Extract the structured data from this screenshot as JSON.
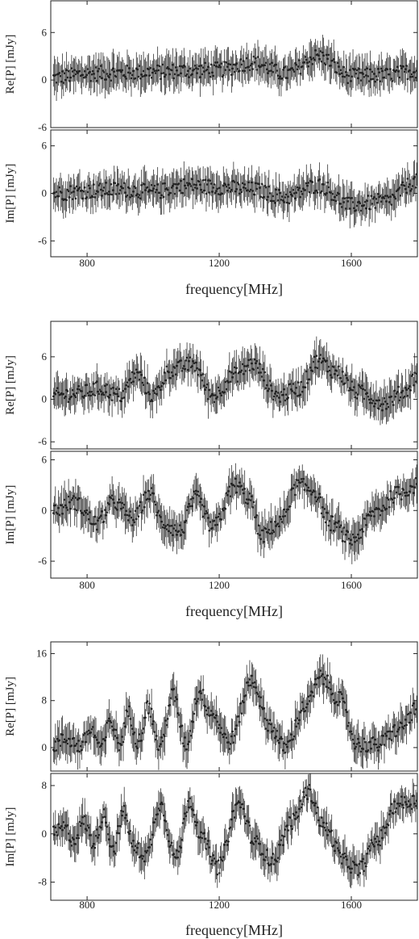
{
  "chart_data": [
    {
      "type": "line",
      "figure": 1,
      "xlabel": "frequency[MHz]",
      "xlim": [
        690,
        1800
      ],
      "xticks": [
        "800",
        "1200",
        "1600"
      ],
      "panels": [
        {
          "ylabel": "Re[P] [mJy]",
          "ylim": [
            -6,
            10
          ],
          "yticks": [
            "-6",
            "0",
            "6"
          ],
          "series": [
            {
              "x": [
                700,
                800,
                900,
                1000,
                1100,
                1200,
                1300,
                1400,
                1500,
                1600,
                1700,
                1800
              ],
              "y": [
                0.3,
                0.8,
                0.9,
                1.0,
                1.2,
                1.3,
                2.2,
                0.8,
                3.0,
                0.5,
                0.6,
                1.2
              ]
            }
          ]
        },
        {
          "ylabel": "Im[P] [mJy]",
          "ylim": [
            -8,
            8
          ],
          "yticks": [
            "-6",
            "0",
            "6"
          ],
          "series": [
            {
              "x": [
                700,
                800,
                900,
                1000,
                1100,
                1200,
                1300,
                1400,
                1500,
                1600,
                1700,
                1800
              ],
              "y": [
                0.0,
                0.3,
                0.5,
                0.2,
                1.0,
                0.8,
                0.5,
                -0.5,
                1.0,
                -1.5,
                -1.0,
                1.5
              ]
            }
          ]
        }
      ]
    },
    {
      "type": "line",
      "figure": 2,
      "xlabel": "frequency[MHz]",
      "xlim": [
        690,
        1800
      ],
      "xticks": [
        "800",
        "1200",
        "1600"
      ],
      "panels": [
        {
          "ylabel": "Re[P] [mJy]",
          "ylim": [
            -7,
            11
          ],
          "yticks": [
            "-6",
            "0",
            "6"
          ],
          "series": [
            {
              "x": [
                700,
                770,
                840,
                900,
                950,
                1000,
                1050,
                1120,
                1180,
                1250,
                1300,
                1380,
                1440,
                1500,
                1550,
                1620,
                1700,
                1760,
                1800
              ],
              "y": [
                0.5,
                0.8,
                1.5,
                0.5,
                3.5,
                0.5,
                4.0,
                5.0,
                0.5,
                3.5,
                5.0,
                0.5,
                1.5,
                5.5,
                4.0,
                1.0,
                -0.5,
                1.0,
                3.5
              ]
            }
          ]
        },
        {
          "ylabel": "Im[P] [mJy]",
          "ylim": [
            -8,
            7
          ],
          "yticks": [
            "-6",
            "0",
            "6"
          ],
          "series": [
            {
              "x": [
                700,
                760,
                830,
                880,
                940,
                990,
                1030,
                1080,
                1130,
                1180,
                1250,
                1290,
                1330,
                1380,
                1440,
                1480,
                1540,
                1600,
                1680,
                1740,
                1800
              ],
              "y": [
                0.0,
                1.0,
                -1.5,
                1.0,
                -1.0,
                2.0,
                -1.5,
                -2.5,
                1.5,
                -2.0,
                3.0,
                1.5,
                -3.0,
                -1.5,
                3.0,
                2.5,
                -1.5,
                -3.5,
                0.0,
                2.0,
                3.0
              ]
            }
          ]
        }
      ]
    },
    {
      "type": "line",
      "figure": 3,
      "xlabel": "frequency[MHz]",
      "xlim": [
        690,
        1800
      ],
      "xticks": [
        "800",
        "1200",
        "1600"
      ],
      "panels": [
        {
          "ylabel": "Re[P] [mJy]",
          "ylim": [
            -4,
            18
          ],
          "yticks": [
            "0",
            "8",
            "16"
          ],
          "series": [
            {
              "x": [
                700,
                740,
                780,
                810,
                845,
                870,
                900,
                925,
                955,
                985,
                1020,
                1060,
                1100,
                1140,
                1175,
                1230,
                1300,
                1350,
                1400,
                1460,
                1510,
                1560,
                1620,
                1680,
                1740,
                1800
              ],
              "y": [
                0.5,
                1.5,
                0.2,
                3.0,
                0.0,
                4.5,
                0.5,
                6.0,
                1.0,
                7.0,
                0.0,
                9.0,
                0.5,
                9.5,
                6.0,
                1.0,
                11.5,
                4.0,
                0.0,
                7.0,
                12.0,
                8.5,
                0.5,
                0.5,
                3.0,
                6.5
              ]
            }
          ]
        },
        {
          "ylabel": "Im[P] [mJy]",
          "ylim": [
            -11,
            10
          ],
          "yticks": [
            "-8",
            "0",
            "8"
          ],
          "series": [
            {
              "x": [
                700,
                730,
                760,
                790,
                820,
                850,
                880,
                910,
                945,
                980,
                1020,
                1070,
                1110,
                1150,
                1195,
                1260,
                1310,
                1360,
                1420,
                1470,
                1520,
                1580,
                1620,
                1680,
                1740,
                1800
              ],
              "y": [
                0.0,
                1.0,
                -1.0,
                2.0,
                -1.5,
                3.0,
                -2.5,
                3.5,
                -2.5,
                -3.5,
                5.0,
                -4.0,
                5.5,
                -1.0,
                -5.5,
                5.0,
                -1.5,
                -4.5,
                2.0,
                7.0,
                1.0,
                -4.5,
                -6.0,
                -1.0,
                5.0,
                5.5
              ]
            }
          ]
        }
      ]
    }
  ]
}
